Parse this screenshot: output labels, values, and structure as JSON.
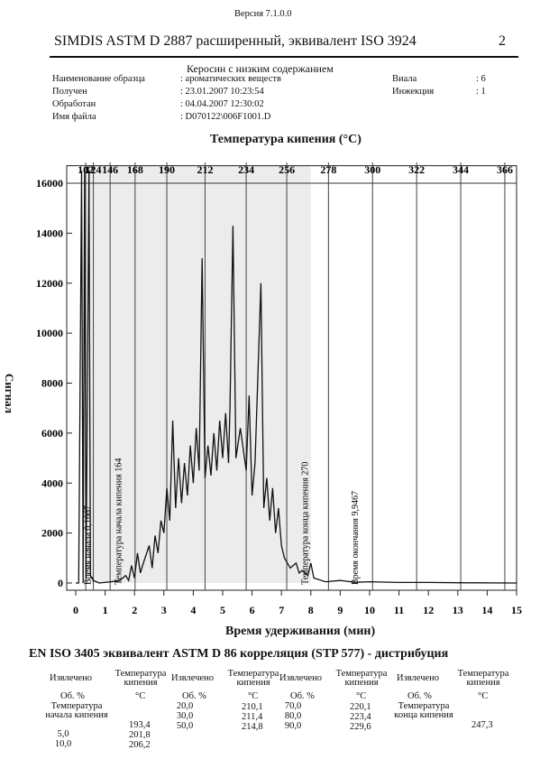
{
  "header": {
    "version": "Версия 7.1.0.0",
    "title": "SIMDIS  ASTM  D 2887 расширенный,  эквивалент ISO 3924",
    "page": "2"
  },
  "info": {
    "sample_line1": "Керосин с низким содержанием",
    "rows": [
      [
        "Наименование образца",
        ": ароматических веществ"
      ],
      [
        "Получен",
        ": 23.01.2007 10:23:54"
      ],
      [
        "Обработан",
        ": 04.04.2007 12:30:02"
      ],
      [
        "Имя файла",
        ": D070122\\006F1001.D"
      ]
    ],
    "right": [
      [
        "Виала",
        ": 6"
      ],
      [
        "Инжекция",
        ": 1"
      ]
    ]
  },
  "chart_data": {
    "type": "line",
    "title": "Температура кипения (°C)",
    "x_label": "Время удерживания (мин)",
    "y_label": "Сигнал",
    "color": "#111",
    "x": [
      0,
      0.1,
      0.2,
      0.25,
      0.3,
      0.35,
      0.45,
      0.5,
      0.6,
      0.8,
      1.2,
      1.5,
      1.7,
      1.8,
      1.9,
      2.0,
      2.1,
      2.2,
      2.3,
      2.5,
      2.6,
      2.7,
      2.8,
      2.9,
      3.0,
      3.1,
      3.2,
      3.3,
      3.4,
      3.5,
      3.6,
      3.7,
      3.8,
      3.9,
      4.0,
      4.1,
      4.2,
      4.3,
      4.4,
      4.5,
      4.6,
      4.7,
      4.8,
      4.9,
      5.0,
      5.1,
      5.2,
      5.25,
      5.35,
      5.45,
      5.6,
      5.8,
      5.9,
      6.0,
      6.1,
      6.3,
      6.4,
      6.5,
      6.6,
      6.7,
      6.8,
      6.9,
      7.0,
      7.1,
      7.3,
      7.5,
      7.6,
      7.7,
      7.9,
      8.0,
      8.1,
      8.5,
      9.0,
      9.5,
      10,
      11,
      12,
      13,
      15
    ],
    "values": [
      0,
      0,
      16500,
      0,
      16500,
      200,
      16500,
      300,
      100,
      0,
      50,
      100,
      300,
      100,
      700,
      200,
      1200,
      400,
      800,
      1500,
      600,
      1900,
      1200,
      2500,
      2000,
      3800,
      2500,
      6500,
      3000,
      5000,
      3200,
      4800,
      3500,
      5500,
      4000,
      6200,
      4500,
      13000,
      4200,
      5500,
      4300,
      6000,
      4500,
      6500,
      5000,
      6800,
      4800,
      7000,
      14300,
      5000,
      6200,
      4500,
      7500,
      3500,
      4800,
      12000,
      3000,
      4200,
      2500,
      3800,
      2000,
      3000,
      1500,
      1000,
      600,
      800,
      400,
      500,
      300,
      800,
      200,
      50,
      100,
      30,
      50,
      20,
      20,
      10,
      0
    ],
    "xlim": [
      0,
      15
    ],
    "ylim": [
      0,
      16700
    ],
    "xticks": [
      0,
      1,
      2,
      3,
      4,
      5,
      6,
      7,
      8,
      9,
      10,
      11,
      12,
      13,
      14,
      15
    ],
    "yticks": [
      0,
      2000,
      4000,
      6000,
      8000,
      10000,
      12000,
      14000,
      16000
    ],
    "top_ticks": [
      {
        "value": 0.34,
        "label": "102"
      },
      {
        "value": 0.6,
        "label": "124"
      },
      {
        "value": 1.17,
        "label": "146"
      },
      {
        "value": 2.02,
        "label": "168"
      },
      {
        "value": 3.1,
        "label": "190"
      },
      {
        "value": 4.4,
        "label": "212"
      },
      {
        "value": 5.8,
        "label": "234"
      },
      {
        "value": 7.18,
        "label": "256"
      },
      {
        "value": 8.6,
        "label": "278"
      },
      {
        "value": 10.1,
        "label": "300"
      },
      {
        "value": 11.6,
        "label": "322"
      },
      {
        "value": 13.1,
        "label": "344"
      },
      {
        "value": 14.6,
        "label": "366"
      }
    ],
    "annotations": [
      {
        "x": 0.5,
        "text": "Время начала 0,1667"
      },
      {
        "x": 1.55,
        "text": "Температура начала кипения 164"
      },
      {
        "x": 7.9,
        "text": "Температура конца кипения 270"
      },
      {
        "x": 9.6,
        "text": "Время окончания 9,9467"
      }
    ]
  },
  "table": {
    "title": "EN ISO 3405 эквивалент ASTM D 86 корреляция (STP 577) - дистрибуция",
    "groups": [
      {
        "col1": "Извлечено",
        "col2": "Температура кипения",
        "unit1": "Об. %",
        "unit2": "°C",
        "rows": [
          [
            "Температура начала кипения",
            "193,4"
          ],
          [
            "5,0",
            "201,8"
          ],
          [
            "10,0",
            "206,2"
          ]
        ]
      },
      {
        "col1": "Извлечено",
        "col2": "Температура кипения",
        "unit1": "Об. %",
        "unit2": "°C",
        "rows": [
          [
            "20,0",
            "210,1"
          ],
          [
            "30,0",
            "211,4"
          ],
          [
            "50,0",
            "214,8"
          ]
        ]
      },
      {
        "col1": "Извлечено",
        "col2": "Температура кипения",
        "unit1": "Об. %",
        "unit2": "°C",
        "rows": [
          [
            "70,0",
            "220,1"
          ],
          [
            "80,0",
            "223,4"
          ],
          [
            "90,0",
            "229,6"
          ]
        ]
      },
      {
        "col1": "Извлечено",
        "col2": "Температура кипения",
        "unit1": "Об. %",
        "unit2": "°C",
        "rows": [
          [
            "Температура конца кипения",
            "247,3"
          ]
        ]
      }
    ]
  }
}
